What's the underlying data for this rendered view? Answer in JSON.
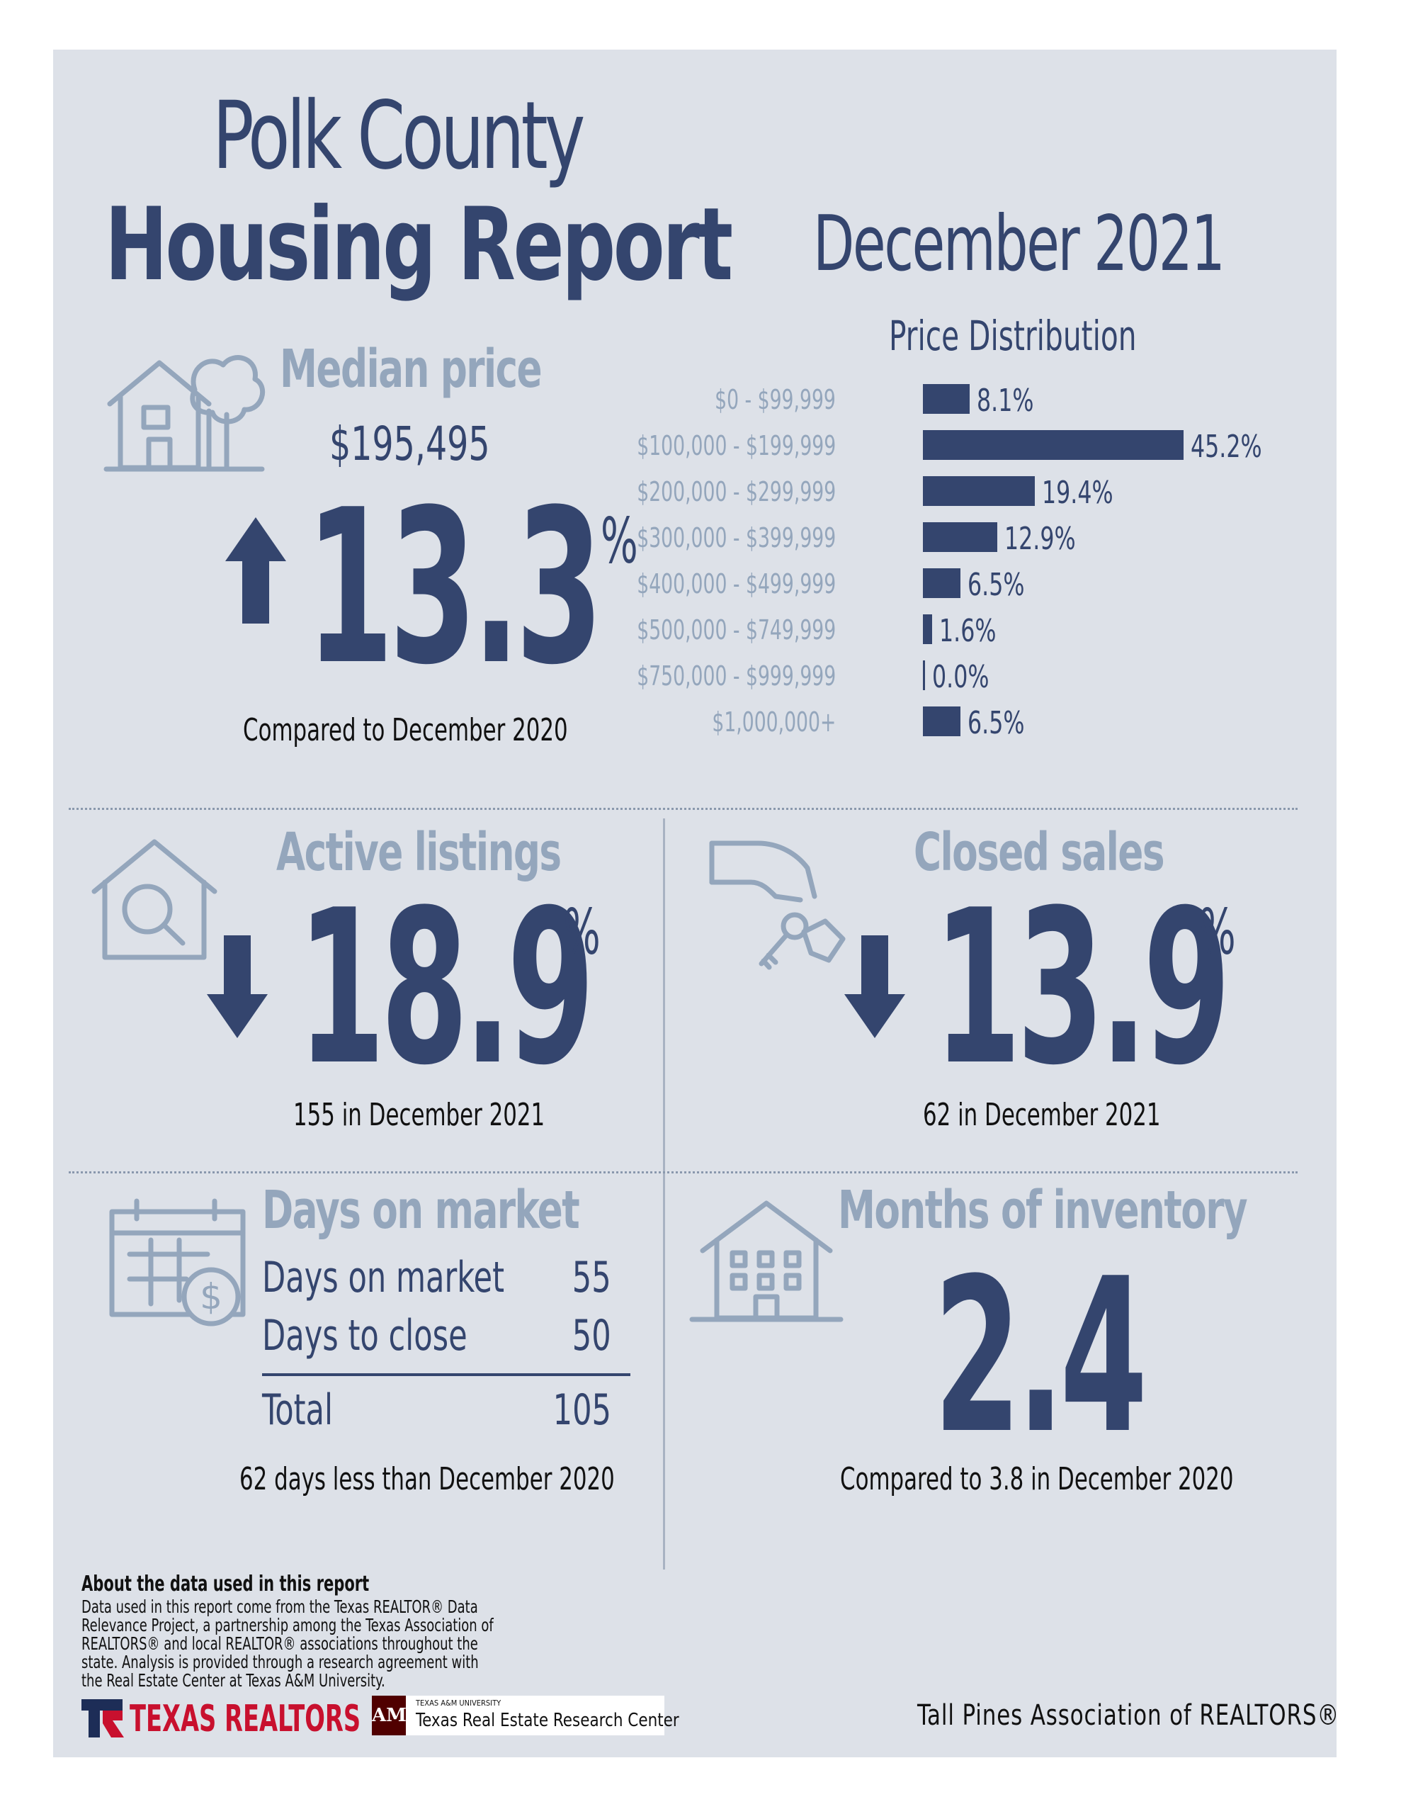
{
  "header": {
    "title_line1": "Polk County",
    "title_line2": "Housing Report",
    "date": "December 2021"
  },
  "median_price": {
    "heading": "Median price",
    "value": "$195,495",
    "direction": "up",
    "change": "13.3",
    "percent_sign": "%",
    "caption": "Compared to December 2020",
    "icon": "house-with-tree-icon"
  },
  "price_distribution": {
    "title": "Price Distribution",
    "chart_data": {
      "type": "bar",
      "title": "Price Distribution",
      "categories": [
        "$0 - $99,999",
        "$100,000 - $199,999",
        "$200,000 - $299,999",
        "$300,000 - $399,999",
        "$400,000 - $499,999",
        "$500,000 - $749,999",
        "$750,000 - $999,999",
        "$1,000,000+"
      ],
      "values": [
        8.1,
        45.2,
        19.4,
        12.9,
        6.5,
        1.6,
        0.0,
        6.5
      ],
      "labels": [
        "8.1%",
        "45.2%",
        "19.4%",
        "12.9%",
        "6.5%",
        "1.6%",
        "0.0%",
        "6.5%"
      ],
      "orientation": "horizontal",
      "color": "#34456e"
    }
  },
  "active_listings": {
    "heading": "Active listings",
    "direction": "down",
    "change": "18.9",
    "percent_sign": "%",
    "caption": "155 in December 2021",
    "icon": "house-magnifier-icon"
  },
  "closed_sales": {
    "heading": "Closed sales",
    "direction": "down",
    "change": "13.9",
    "percent_sign": "%",
    "caption": "62 in December 2021",
    "icon": "hand-keys-icon"
  },
  "days_on_market": {
    "heading": "Days on market",
    "rows": [
      {
        "label": "Days on market",
        "value": "55"
      },
      {
        "label": "Days to close",
        "value": "50"
      }
    ],
    "total_label": "Total",
    "total_value": "105",
    "caption": "62 days less than December 2020",
    "icon": "calendar-dollar-icon"
  },
  "months_inventory": {
    "heading": "Months of inventory",
    "value": "2.4",
    "caption": "Compared to 3.8 in December 2020",
    "icon": "apartment-building-icon"
  },
  "footer": {
    "about_heading": "About the data used in this report",
    "about_body": "Data used in this report come from the Texas REALTOR® Data Relevance Project, a partnership among the Texas Association of REALTORS® and local REALTOR® associations throughout the state. Analysis is provided through a research agreement with the Real Estate Center at Texas A&M University.",
    "texas_realtors": "TEXAS REALTORS",
    "tamu_small": "TEXAS A&M UNIVERSITY",
    "tamu_name": "Texas Real Estate Research Center",
    "association": "Tall Pines Association of REALTORS®"
  },
  "colors": {
    "navy": "#34456e",
    "grey_blue": "#94a6bc",
    "panel": "#dde1e8",
    "realtors_red": "#c8102e",
    "tamu_maroon": "#500000"
  }
}
